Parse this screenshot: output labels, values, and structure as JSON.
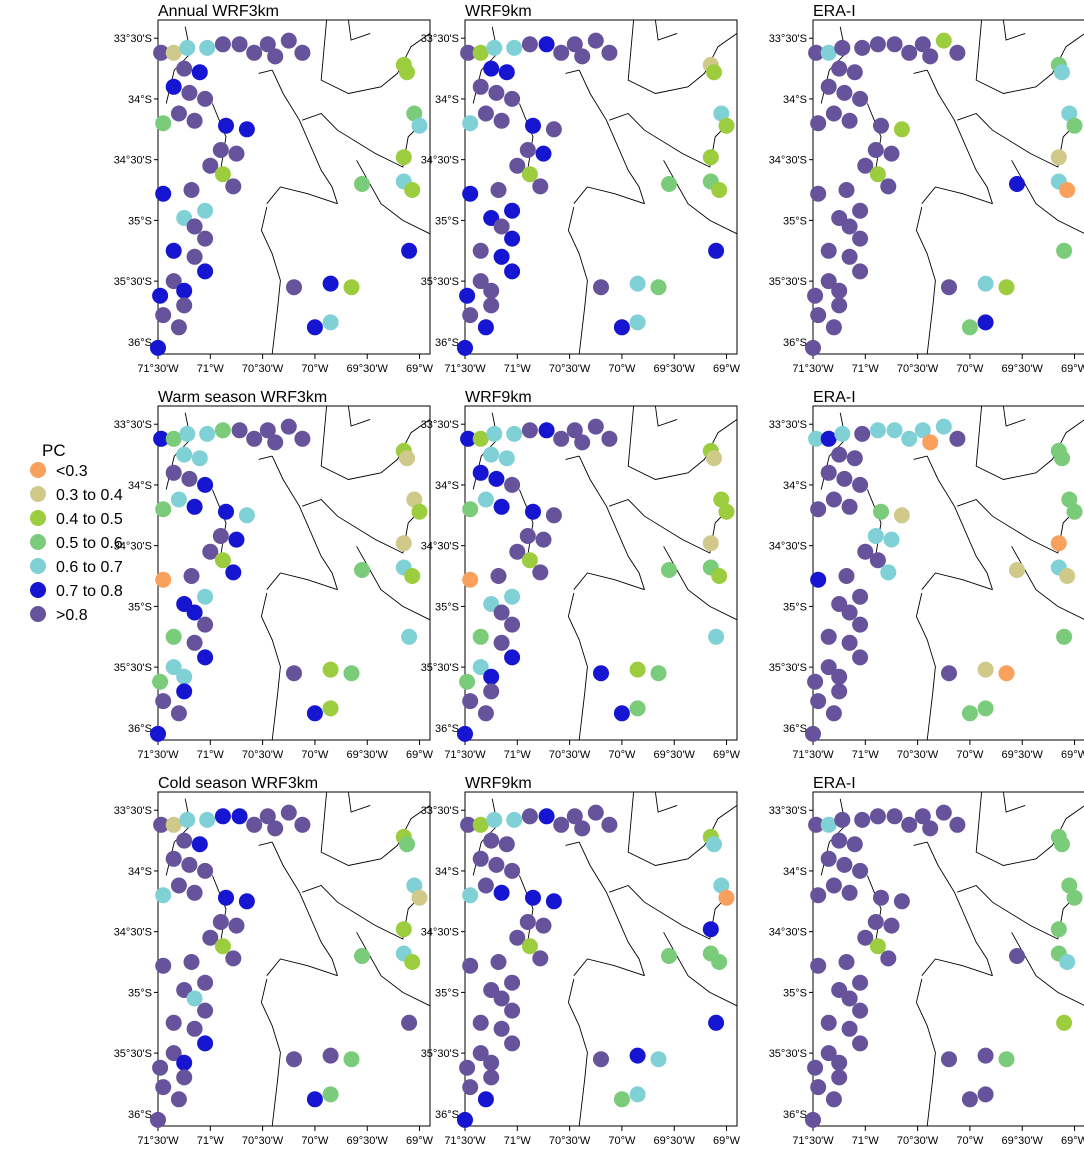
{
  "legend": {
    "title": "PC",
    "classes": [
      {
        "label": "<0.3",
        "color": "#F9A05C"
      },
      {
        "label": "0.3 to 0.4",
        "color": "#CFC98A"
      },
      {
        "label": "0.4 to 0.5",
        "color": "#9CCD3F"
      },
      {
        "label": "0.5 to 0.6",
        "color": "#7ACB7A"
      },
      {
        "label": "0.6 to 0.7",
        "color": "#7FD1D6"
      },
      {
        "label": "0.7 to 0.8",
        "color": "#1515D2"
      },
      {
        "label": ">0.8",
        "color": "#66539B"
      }
    ]
  },
  "chart_data": {
    "type": "map-scatter",
    "x_axis": {
      "range": [
        -71.5,
        -68.9
      ],
      "ticks": [
        -71.5,
        -71,
        -70.5,
        -70,
        -69.5,
        -69
      ],
      "tick_labels": [
        "71°30'W",
        "71°W",
        "70°30'W",
        "70°W",
        "69°30'W",
        "69°W"
      ]
    },
    "y_axis": {
      "range": [
        -36.1,
        -33.35
      ],
      "ticks": [
        -33.5,
        -34,
        -34.5,
        -35,
        -35.5,
        -36
      ],
      "tick_labels": [
        "33°30'S",
        "34°S",
        "34°30'S",
        "35°S",
        "35°30'S",
        "36°S"
      ]
    },
    "stations": [
      [
        -71.47,
        -33.62
      ],
      [
        -71.35,
        -33.62
      ],
      [
        -71.22,
        -33.58
      ],
      [
        -71.03,
        -33.58
      ],
      [
        -70.88,
        -33.55
      ],
      [
        -70.72,
        -33.55
      ],
      [
        -70.58,
        -33.62
      ],
      [
        -70.45,
        -33.55
      ],
      [
        -70.38,
        -33.65
      ],
      [
        -70.25,
        -33.52
      ],
      [
        -70.12,
        -33.62
      ],
      [
        -71.25,
        -33.75
      ],
      [
        -71.1,
        -33.78
      ],
      [
        -71.35,
        -33.9
      ],
      [
        -71.2,
        -33.95
      ],
      [
        -71.05,
        -34.0
      ],
      [
        -71.45,
        -34.2
      ],
      [
        -71.3,
        -34.12
      ],
      [
        -71.15,
        -34.18
      ],
      [
        -70.85,
        -34.22
      ],
      [
        -70.65,
        -34.25
      ],
      [
        -70.9,
        -34.42
      ],
      [
        -70.75,
        -34.45
      ],
      [
        -71.0,
        -34.55
      ],
      [
        -70.88,
        -34.62
      ],
      [
        -70.78,
        -34.72
      ],
      [
        -71.45,
        -34.78
      ],
      [
        -71.18,
        -34.75
      ],
      [
        -71.05,
        -34.92
      ],
      [
        -71.25,
        -34.98
      ],
      [
        -71.15,
        -35.05
      ],
      [
        -71.05,
        -35.15
      ],
      [
        -71.35,
        -35.25
      ],
      [
        -71.15,
        -35.3
      ],
      [
        -71.05,
        -35.42
      ],
      [
        -71.35,
        -35.5
      ],
      [
        -71.48,
        -35.62
      ],
      [
        -71.25,
        -35.58
      ],
      [
        -71.25,
        -35.7
      ],
      [
        -71.45,
        -35.78
      ],
      [
        -71.3,
        -35.88
      ],
      [
        -71.5,
        -36.05
      ],
      [
        -70.2,
        -35.55
      ],
      [
        -69.85,
        -35.52
      ],
      [
        -69.65,
        -35.55
      ],
      [
        -70.0,
        -35.88
      ],
      [
        -69.85,
        -35.84
      ],
      [
        -69.15,
        -33.72
      ],
      [
        -69.12,
        -33.78
      ],
      [
        -69.05,
        -34.12
      ],
      [
        -69.0,
        -34.22
      ],
      [
        -69.15,
        -34.48
      ],
      [
        -69.55,
        -34.7
      ],
      [
        -69.15,
        -34.68
      ],
      [
        -69.07,
        -34.75
      ],
      [
        -69.1,
        -35.25
      ]
    ],
    "panels": [
      {
        "title": "Annual WRF3km",
        "classes": [
          6,
          1,
          4,
          4,
          6,
          6,
          6,
          6,
          6,
          6,
          6,
          6,
          5,
          5,
          6,
          6,
          3,
          6,
          6,
          5,
          5,
          6,
          6,
          6,
          2,
          6,
          5,
          6,
          4,
          4,
          6,
          6,
          5,
          6,
          5,
          6,
          5,
          5,
          6,
          6,
          6,
          5,
          6,
          5,
          2,
          5,
          4,
          2,
          2,
          3,
          4,
          2,
          3,
          4,
          2,
          5
        ]
      },
      {
        "title": "WRF9km",
        "classes": [
          6,
          2,
          4,
          4,
          6,
          5,
          6,
          6,
          6,
          6,
          6,
          5,
          5,
          6,
          6,
          6,
          4,
          6,
          6,
          5,
          6,
          6,
          5,
          6,
          2,
          6,
          5,
          6,
          5,
          5,
          6,
          5,
          6,
          5,
          5,
          6,
          5,
          6,
          6,
          6,
          5,
          5,
          6,
          4,
          3,
          5,
          4,
          1,
          2,
          4,
          2,
          2,
          3,
          3,
          2,
          5
        ]
      },
      {
        "title": "ERA-I",
        "classes": [
          6,
          4,
          6,
          6,
          6,
          6,
          6,
          6,
          6,
          2,
          6,
          6,
          6,
          6,
          6,
          6,
          6,
          6,
          6,
          6,
          2,
          6,
          6,
          6,
          2,
          6,
          6,
          6,
          6,
          6,
          6,
          6,
          6,
          6,
          6,
          6,
          6,
          6,
          6,
          6,
          6,
          6,
          6,
          4,
          2,
          3,
          5,
          3,
          4,
          4,
          3,
          1,
          5,
          4,
          0,
          3
        ]
      },
      {
        "title": "Warm season WRF3km",
        "classes": [
          5,
          3,
          4,
          4,
          3,
          6,
          6,
          6,
          6,
          6,
          6,
          4,
          4,
          6,
          6,
          5,
          3,
          4,
          5,
          5,
          4,
          6,
          5,
          6,
          2,
          5,
          0,
          6,
          4,
          5,
          5,
          6,
          3,
          6,
          5,
          4,
          3,
          4,
          5,
          6,
          6,
          5,
          6,
          2,
          3,
          5,
          2,
          2,
          1,
          1,
          2,
          1,
          3,
          4,
          2,
          4
        ]
      },
      {
        "title": "WRF9km",
        "classes": [
          5,
          2,
          4,
          4,
          6,
          5,
          6,
          6,
          6,
          6,
          6,
          4,
          4,
          5,
          5,
          6,
          3,
          4,
          5,
          5,
          6,
          6,
          6,
          6,
          2,
          6,
          0,
          6,
          4,
          4,
          6,
          6,
          3,
          6,
          5,
          4,
          3,
          5,
          6,
          6,
          6,
          5,
          5,
          2,
          3,
          5,
          3,
          2,
          1,
          2,
          2,
          1,
          3,
          3,
          2,
          4
        ]
      },
      {
        "title": "ERA-I",
        "classes": [
          4,
          5,
          4,
          6,
          4,
          4,
          4,
          4,
          0,
          4,
          6,
          6,
          6,
          6,
          6,
          6,
          6,
          6,
          6,
          3,
          1,
          4,
          4,
          6,
          6,
          4,
          5,
          6,
          6,
          6,
          6,
          6,
          6,
          6,
          6,
          6,
          6,
          6,
          6,
          6,
          6,
          6,
          6,
          1,
          0,
          3,
          3,
          3,
          3,
          3,
          3,
          0,
          1,
          4,
          1,
          3
        ]
      },
      {
        "title": "Cold season WRF3km",
        "classes": [
          6,
          1,
          4,
          4,
          5,
          5,
          6,
          6,
          6,
          6,
          6,
          6,
          5,
          6,
          6,
          6,
          4,
          6,
          6,
          5,
          5,
          6,
          6,
          6,
          2,
          6,
          6,
          6,
          6,
          6,
          4,
          6,
          6,
          6,
          5,
          6,
          6,
          5,
          6,
          6,
          6,
          6,
          6,
          6,
          3,
          5,
          3,
          2,
          3,
          4,
          1,
          2,
          3,
          4,
          2,
          6
        ]
      },
      {
        "title": "WRF9km",
        "classes": [
          6,
          2,
          4,
          4,
          6,
          5,
          6,
          6,
          6,
          6,
          6,
          6,
          6,
          6,
          6,
          6,
          4,
          6,
          5,
          5,
          5,
          6,
          6,
          6,
          2,
          6,
          6,
          6,
          6,
          6,
          6,
          6,
          6,
          6,
          6,
          6,
          6,
          6,
          6,
          6,
          5,
          5,
          6,
          5,
          4,
          3,
          4,
          2,
          4,
          4,
          0,
          5,
          3,
          3,
          3,
          5
        ]
      },
      {
        "title": "ERA-I",
        "classes": [
          6,
          4,
          6,
          6,
          6,
          6,
          6,
          6,
          6,
          6,
          6,
          6,
          6,
          6,
          6,
          6,
          6,
          6,
          6,
          6,
          6,
          6,
          6,
          6,
          2,
          6,
          6,
          6,
          6,
          6,
          6,
          6,
          6,
          6,
          6,
          6,
          6,
          6,
          6,
          6,
          6,
          6,
          6,
          6,
          3,
          6,
          6,
          3,
          3,
          3,
          3,
          3,
          6,
          3,
          4,
          2
        ]
      }
    ]
  }
}
